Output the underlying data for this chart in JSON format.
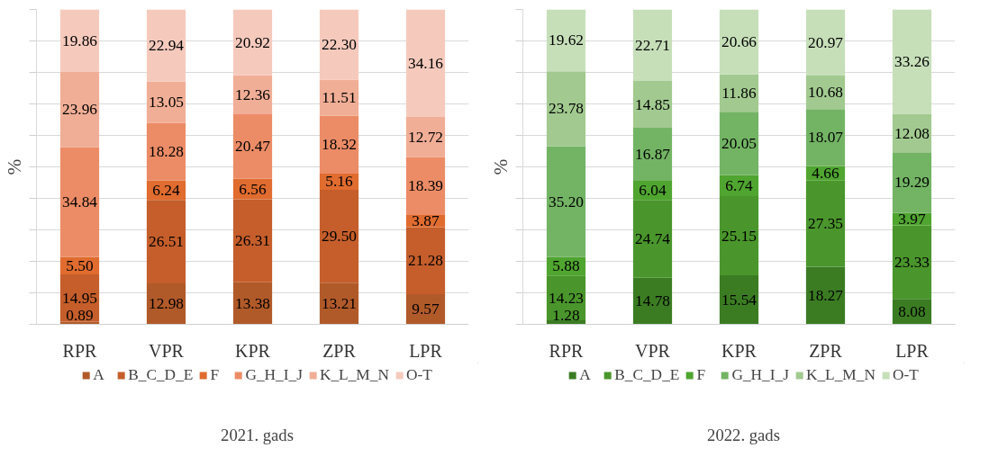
{
  "chart_data": [
    {
      "type": "bar",
      "stacked": true,
      "title": "2021. gads",
      "ylabel": "%",
      "categories": [
        "RPR",
        "VPR",
        "KPR",
        "ZPR",
        "LPR"
      ],
      "ylim": [
        0,
        100
      ],
      "yticks": [
        {
          "value": 0,
          "label": null
        },
        {
          "value": 10,
          "label": null
        },
        {
          "value": 20,
          "label": null
        },
        {
          "value": 30,
          "label": null
        },
        {
          "value": 40,
          "label": null
        },
        {
          "value": 50,
          "label": null
        },
        {
          "value": 60,
          "label": null
        },
        {
          "value": 70,
          "label": null
        },
        {
          "value": 80,
          "label": null
        },
        {
          "value": 90,
          "label": null
        },
        {
          "value": 100,
          "label": null
        }
      ],
      "tick_labels": "x",
      "grid": "y",
      "legend": "bottom",
      "series": [
        {
          "name": "A",
          "color": "#b15a29",
          "values": [
            0.89,
            12.98,
            13.38,
            13.21,
            9.57
          ],
          "value_labels": [
            "0.89",
            "12.98",
            "13.38",
            "13.21",
            "9.57"
          ]
        },
        {
          "name": "B_C_D_E",
          "color": "#c55e2b",
          "values": [
            14.95,
            26.51,
            26.31,
            29.5,
            21.28
          ],
          "value_labels": [
            "14.95",
            "26.51",
            "26.31",
            "29.50",
            "21.28"
          ]
        },
        {
          "name": "F",
          "color": "#e06c2f",
          "values": [
            5.5,
            6.24,
            6.56,
            5.16,
            3.87
          ],
          "value_labels": [
            "5.50",
            "6.24",
            "6.56",
            "5.16",
            "3.87"
          ]
        },
        {
          "name": "G_H_I_J",
          "color": "#ec8c66",
          "values": [
            34.84,
            18.28,
            20.47,
            18.32,
            18.39
          ],
          "value_labels": [
            "34.84",
            "18.28",
            "20.47",
            "18.32",
            "18.39"
          ]
        },
        {
          "name": "K_L_M_N",
          "color": "#f1ae96",
          "values": [
            23.96,
            13.05,
            12.36,
            11.51,
            12.72
          ],
          "value_labels": [
            "23.96",
            "13.05",
            "12.36",
            "11.51",
            "12.72"
          ]
        },
        {
          "name": "O-T",
          "color": "#f5cabd",
          "values": [
            19.86,
            22.94,
            20.92,
            22.3,
            34.16
          ],
          "value_labels": [
            "19.86",
            "22.94",
            "20.92",
            "22.30",
            "34.16"
          ]
        }
      ]
    },
    {
      "type": "bar",
      "stacked": true,
      "title": "2022. gads",
      "ylabel": "%",
      "categories": [
        "RPR",
        "VPR",
        "KPR",
        "ZPR",
        "LPR"
      ],
      "ylim": [
        0,
        100
      ],
      "yticks": [
        {
          "value": 0,
          "label": null
        },
        {
          "value": 10,
          "label": null
        },
        {
          "value": 20,
          "label": null
        },
        {
          "value": 30,
          "label": null
        },
        {
          "value": 40,
          "label": null
        },
        {
          "value": 50,
          "label": null
        },
        {
          "value": 60,
          "label": null
        },
        {
          "value": 70,
          "label": null
        },
        {
          "value": 80,
          "label": null
        },
        {
          "value": 90,
          "label": null
        },
        {
          "value": 100,
          "label": null
        }
      ],
      "tick_labels": "x",
      "grid": "y",
      "legend": "bottom",
      "series": [
        {
          "name": "A",
          "color": "#3b7c23",
          "values": [
            1.28,
            14.78,
            15.54,
            18.27,
            8.08
          ],
          "value_labels": [
            "1.28",
            "14.78",
            "15.54",
            "18.27",
            "8.08"
          ]
        },
        {
          "name": "B_C_D_E",
          "color": "#4a962c",
          "values": [
            14.23,
            24.74,
            25.15,
            27.35,
            23.33
          ],
          "value_labels": [
            "14.23",
            "24.74",
            "25.15",
            "27.35",
            "23.33"
          ]
        },
        {
          "name": "F",
          "color": "#4fa530",
          "values": [
            5.88,
            6.04,
            6.74,
            4.66,
            3.97
          ],
          "value_labels": [
            "5.88",
            "6.04",
            "6.74",
            "4.66",
            "3.97"
          ]
        },
        {
          "name": "G_H_I_J",
          "color": "#73b464",
          "values": [
            35.2,
            16.87,
            20.05,
            18.07,
            19.29
          ],
          "value_labels": [
            "35.20",
            "16.87",
            "20.05",
            "18.07",
            "19.29"
          ]
        },
        {
          "name": "K_L_M_N",
          "color": "#a2ca90",
          "values": [
            23.78,
            14.85,
            11.86,
            10.68,
            12.08
          ],
          "value_labels": [
            "23.78",
            "14.85",
            "11.86",
            "10.68",
            "12.08"
          ]
        },
        {
          "name": "O-T",
          "color": "#c6dfb9",
          "values": [
            19.62,
            22.71,
            20.66,
            20.97,
            33.26
          ],
          "value_labels": [
            "19.62",
            "22.71",
            "20.66",
            "20.97",
            "33.26"
          ]
        }
      ]
    }
  ]
}
